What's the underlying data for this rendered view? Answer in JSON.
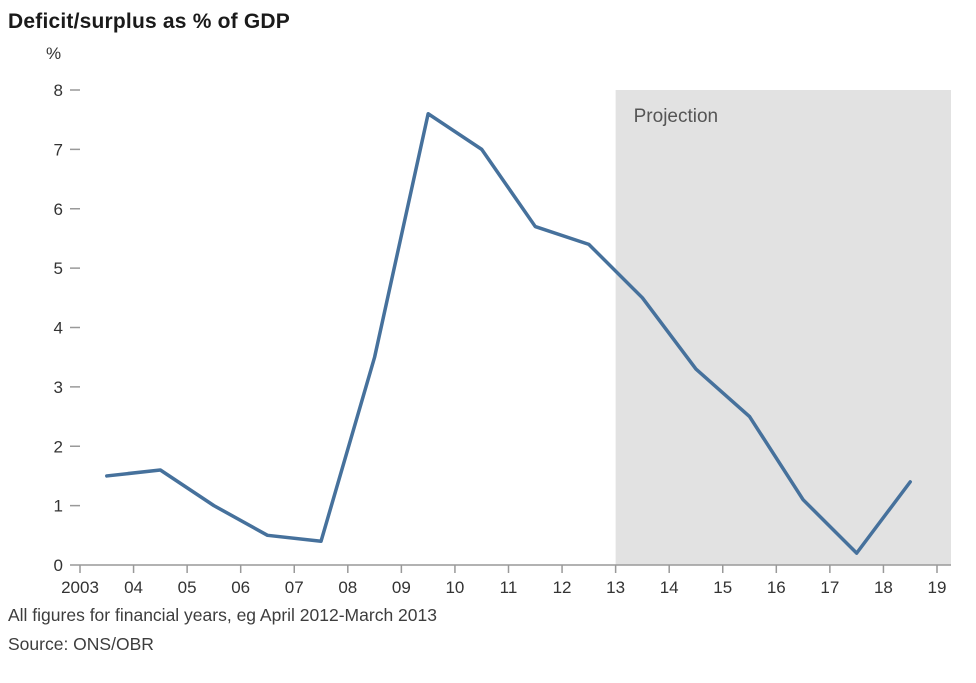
{
  "title": "Deficit/surplus as % of GDP",
  "footer": {
    "note": "All figures for financial years, eg April 2012-March 2013",
    "source": "Source: ONS/OBR"
  },
  "chart_data": {
    "type": "line",
    "title": "Deficit/surplus as % of GDP",
    "xlabel": "",
    "ylabel": "%",
    "x": [
      2003.5,
      2004.5,
      2005.5,
      2006.5,
      2007.5,
      2008.5,
      2009.5,
      2010.5,
      2011.5,
      2012.5,
      2013.5,
      2014.5,
      2015.5,
      2016.5,
      2017.5,
      2018.5
    ],
    "values": [
      1.5,
      1.6,
      1.0,
      0.5,
      0.4,
      3.5,
      7.6,
      7.0,
      5.7,
      5.4,
      4.5,
      3.3,
      2.5,
      1.1,
      0.2,
      1.4
    ],
    "xlim": [
      2003,
      2019
    ],
    "ylim": [
      0,
      8
    ],
    "y_ticks": [
      0,
      1,
      2,
      3,
      4,
      5,
      6,
      7,
      8
    ],
    "x_tick_values": [
      2003,
      2004,
      2005,
      2006,
      2007,
      2008,
      2009,
      2010,
      2011,
      2012,
      2013,
      2014,
      2015,
      2016,
      2017,
      2018,
      2019
    ],
    "x_tick_labels": [
      "2003",
      "04",
      "05",
      "06",
      "07",
      "08",
      "09",
      "10",
      "11",
      "12",
      "13",
      "14",
      "15",
      "16",
      "17",
      "18",
      "19"
    ],
    "projection": {
      "label": "Projection",
      "start": 2013,
      "end": 2019
    },
    "line_color": "#46719c",
    "band_color": "#e2e2e2",
    "axis_color": "#999999",
    "grid": false,
    "legend": false
  }
}
